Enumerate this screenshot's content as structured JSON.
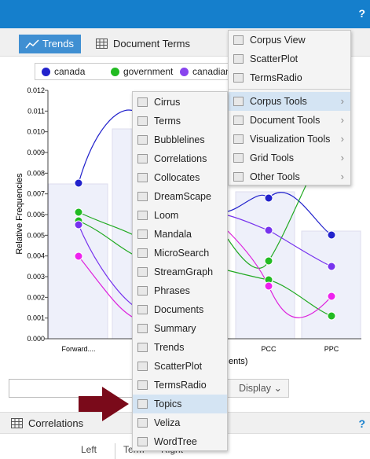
{
  "header": {
    "help": "?"
  },
  "tabs": [
    "Trends",
    "Document Terms"
  ],
  "legend": [
    "canada",
    "government",
    "canadian"
  ],
  "chart": {
    "y_axis_label": "Relative Frequencies",
    "x_axis_label": "ents)",
    "yticks": [
      "0.000",
      "0.001",
      "0.002",
      "0.003",
      "0.004",
      "0.005",
      "0.006",
      "0.007",
      "0.008",
      "0.009",
      "0.010",
      "0.011",
      "0.012"
    ],
    "categories": [
      "Forward....",
      "PCC",
      "PPC"
    ]
  },
  "display_button": "Display",
  "menu": {
    "items": [
      "Corpus View",
      "ScatterPlot",
      "TermsRadio"
    ],
    "submenus": [
      "Corpus Tools",
      "Document Tools",
      "Visualization Tools",
      "Grid Tools",
      "Other Tools"
    ]
  },
  "submenu": [
    "Cirrus",
    "Terms",
    "Bubblelines",
    "Correlations",
    "Collocates",
    "DreamScape",
    "Loom",
    "Mandala",
    "MicroSearch",
    "StreamGraph",
    "Phrases",
    "Documents",
    "Summary",
    "Trends",
    "ScatterPlot",
    "TermsRadio",
    "Topics",
    "Veliza",
    "WordTree"
  ],
  "bottom_panel": {
    "title": "Correlations",
    "help": "?",
    "columns": [
      "Left",
      "Term",
      "Right"
    ]
  }
}
